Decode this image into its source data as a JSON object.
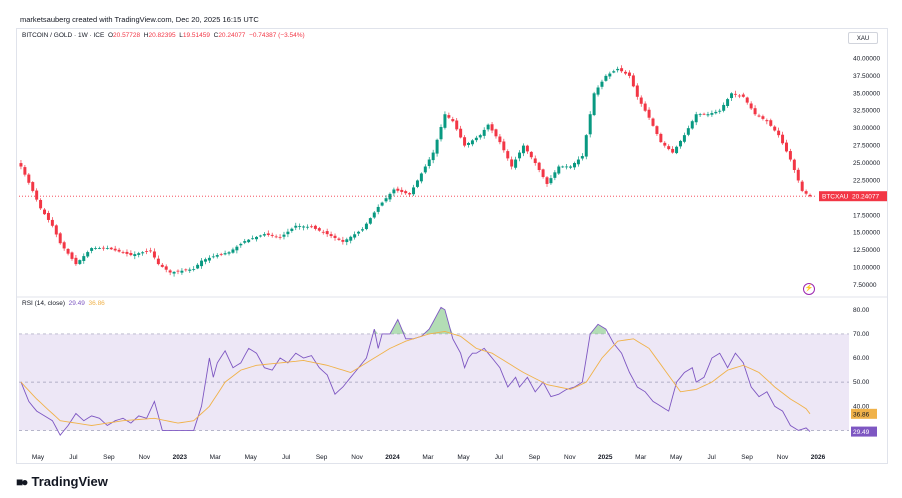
{
  "header": {
    "credit": "marketsauberg created with TradingView.com, Dec 20, 2025 16:15 UTC"
  },
  "legend": {
    "symbol": "BITCOIN / GOLD · 1W · ICE",
    "o_label": "O",
    "o": "20.57728",
    "h_label": "H",
    "h": "20.82395",
    "l_label": "L",
    "l": "19.51459",
    "c_label": "C",
    "c": "20.24077",
    "change": "−0.74387 (−3.54%)"
  },
  "scale_button": "XAU",
  "price_badge": {
    "symbol": "BTCXAU",
    "value": "20.24077"
  },
  "rsi_legend": {
    "label": "RSI (14, close)",
    "rsi": "29.49",
    "ma": "36.86"
  },
  "rsi_badges": {
    "ma": "36.86",
    "rsi": "29.49"
  },
  "brand": "TradingView",
  "colors": {
    "up": "#089981",
    "down": "#f23645",
    "rsi": "#7e57c2",
    "rsi_ma": "#f0b24a",
    "band": "#ede7f6"
  },
  "chart_data": [
    {
      "type": "candlestick",
      "title": "BITCOIN / GOLD · 1W · ICE",
      "yticks": [
        "40.00000",
        "37.50000",
        "35.00000",
        "32.50000",
        "30.00000",
        "27.50000",
        "25.00000",
        "22.50000",
        "20.00000",
        "17.50000",
        "15.00000",
        "12.50000",
        "10.00000",
        "7.50000"
      ],
      "ylim": [
        6.5,
        41.5
      ],
      "xticks": [
        "May",
        "Jul",
        "Sep",
        "Nov",
        "2023",
        "Mar",
        "May",
        "Jul",
        "Sep",
        "Nov",
        "2024",
        "Mar",
        "May",
        "Jul",
        "Sep",
        "Nov",
        "2025",
        "Mar",
        "May",
        "Jul",
        "Sep",
        "Nov",
        "2026"
      ],
      "last_value": 20.24077,
      "close_anchors": [
        [
          0,
          24.5
        ],
        [
          3,
          21
        ],
        [
          5,
          18.5
        ],
        [
          8,
          16
        ],
        [
          10,
          13.5
        ],
        [
          14,
          10.5
        ],
        [
          18,
          12.8
        ],
        [
          22,
          12.8
        ],
        [
          28,
          11.8
        ],
        [
          31,
          12.2
        ],
        [
          33,
          12.4
        ],
        [
          35,
          10.5
        ],
        [
          38,
          9.3
        ],
        [
          44,
          9.8
        ],
        [
          46,
          11
        ],
        [
          50,
          11.8
        ],
        [
          53,
          12.2
        ],
        [
          57,
          13.8
        ],
        [
          62,
          14.8
        ],
        [
          66,
          14.3
        ],
        [
          70,
          16
        ],
        [
          74,
          15.8
        ],
        [
          78,
          14.8
        ],
        [
          82,
          13.7
        ],
        [
          87,
          15.5
        ],
        [
          91,
          18.7
        ],
        [
          95,
          21.2
        ],
        [
          99,
          20.5
        ],
        [
          102,
          23.5
        ],
        [
          105,
          26.5
        ],
        [
          108,
          32
        ],
        [
          110,
          31
        ],
        [
          113,
          27.5
        ],
        [
          117,
          29
        ],
        [
          119,
          30.5
        ],
        [
          122,
          28
        ],
        [
          125,
          24.5
        ],
        [
          128,
          27.5
        ],
        [
          131,
          25
        ],
        [
          134,
          22
        ],
        [
          137,
          24.5
        ],
        [
          140,
          24.5
        ],
        [
          143,
          26
        ],
        [
          146,
          35
        ],
        [
          149,
          37.5
        ],
        [
          152,
          38.5
        ],
        [
          155,
          37.5
        ],
        [
          157,
          34.5
        ],
        [
          160,
          31.5
        ],
        [
          163,
          28
        ],
        [
          166,
          26.5
        ],
        [
          169,
          29
        ],
        [
          172,
          32
        ],
        [
          175,
          32
        ],
        [
          178,
          32.5
        ],
        [
          181,
          35
        ],
        [
          184,
          34.5
        ],
        [
          187,
          32
        ],
        [
          190,
          31
        ],
        [
          193,
          29
        ],
        [
          196,
          25.5
        ],
        [
          199,
          21
        ],
        [
          200,
          20.6
        ],
        [
          201,
          20.24
        ]
      ],
      "n_candles": 202
    },
    {
      "type": "line",
      "title": "RSI (14, close)",
      "yticks": [
        "80.00",
        "70.00",
        "60.00",
        "50.00",
        "40.00"
      ],
      "ylim": [
        26,
        82
      ],
      "band": [
        30,
        70
      ],
      "midline": 50,
      "series": [
        {
          "name": "RSI",
          "anchors": [
            [
              0,
              50
            ],
            [
              2,
              42
            ],
            [
              4,
              38
            ],
            [
              6,
              36
            ],
            [
              8,
              34
            ],
            [
              10,
              28
            ],
            [
              12,
              32
            ],
            [
              14,
              37
            ],
            [
              16,
              34
            ],
            [
              18,
              36
            ],
            [
              20,
              35
            ],
            [
              22,
              32
            ],
            [
              24,
              34
            ],
            [
              26,
              35
            ],
            [
              28,
              33
            ],
            [
              30,
              36
            ],
            [
              32,
              35
            ],
            [
              34,
              42
            ],
            [
              36,
              30
            ],
            [
              38,
              30
            ],
            [
              42,
              30
            ],
            [
              44,
              30
            ],
            [
              46,
              40
            ],
            [
              48,
              60
            ],
            [
              49,
              52
            ],
            [
              50,
              58
            ],
            [
              52,
              63
            ],
            [
              54,
              56
            ],
            [
              56,
              58
            ],
            [
              58,
              64
            ],
            [
              60,
              62
            ],
            [
              62,
              56
            ],
            [
              64,
              55
            ],
            [
              66,
              60
            ],
            [
              68,
              58
            ],
            [
              70,
              62
            ],
            [
              72,
              60
            ],
            [
              74,
              61
            ],
            [
              76,
              56
            ],
            [
              78,
              53
            ],
            [
              80,
              45
            ],
            [
              82,
              48
            ],
            [
              84,
              52
            ],
            [
              86,
              56
            ],
            [
              88,
              60
            ],
            [
              90,
              72
            ],
            [
              91,
              64
            ],
            [
              92,
              70
            ],
            [
              94,
              70
            ],
            [
              96,
              76
            ],
            [
              98,
              68
            ],
            [
              100,
              68
            ],
            [
              102,
              69
            ],
            [
              104,
              72
            ],
            [
              106,
              78
            ],
            [
              107,
              81
            ],
            [
              108,
              80
            ],
            [
              110,
              68
            ],
            [
              112,
              62
            ],
            [
              113,
              56
            ],
            [
              114,
              60
            ],
            [
              115,
              62
            ],
            [
              116,
              62
            ],
            [
              118,
              64
            ],
            [
              120,
              60
            ],
            [
              122,
              56
            ],
            [
              124,
              48
            ],
            [
              126,
              52
            ],
            [
              127,
              48
            ],
            [
              128,
              50
            ],
            [
              129,
              52
            ],
            [
              131,
              46
            ],
            [
              133,
              50
            ],
            [
              135,
              44
            ],
            [
              137,
              45
            ],
            [
              139,
              47
            ],
            [
              141,
              48
            ],
            [
              143,
              50
            ],
            [
              145,
              70
            ],
            [
              147,
              74
            ],
            [
              149,
              72
            ],
            [
              151,
              66
            ],
            [
              153,
              62
            ],
            [
              155,
              54
            ],
            [
              157,
              48
            ],
            [
              159,
              46
            ],
            [
              161,
              42
            ],
            [
              163,
              40
            ],
            [
              165,
              38
            ],
            [
              167,
              50
            ],
            [
              169,
              54
            ],
            [
              171,
              56
            ],
            [
              172,
              50
            ],
            [
              174,
              52
            ],
            [
              176,
              60
            ],
            [
              178,
              62
            ],
            [
              180,
              56
            ],
            [
              182,
              62
            ],
            [
              184,
              58
            ],
            [
              186,
              48
            ],
            [
              188,
              44
            ],
            [
              190,
              46
            ],
            [
              192,
              40
            ],
            [
              194,
              38
            ],
            [
              196,
              32
            ],
            [
              198,
              30
            ],
            [
              200,
              31
            ],
            [
              201,
              29.49
            ]
          ]
        },
        {
          "name": "RSI-based MA",
          "anchors": [
            [
              0,
              50
            ],
            [
              4,
              43
            ],
            [
              10,
              34
            ],
            [
              18,
              32
            ],
            [
              26,
              34
            ],
            [
              34,
              35
            ],
            [
              40,
              33
            ],
            [
              44,
              34
            ],
            [
              48,
              40
            ],
            [
              52,
              50
            ],
            [
              56,
              55
            ],
            [
              60,
              57
            ],
            [
              66,
              58
            ],
            [
              72,
              59
            ],
            [
              78,
              57
            ],
            [
              84,
              54
            ],
            [
              90,
              60
            ],
            [
              94,
              64
            ],
            [
              98,
              67
            ],
            [
              104,
              70
            ],
            [
              108,
              71
            ],
            [
              112,
              69
            ],
            [
              116,
              64
            ],
            [
              120,
              62
            ],
            [
              124,
              58
            ],
            [
              128,
              54
            ],
            [
              134,
              49
            ],
            [
              140,
              47
            ],
            [
              144,
              50
            ],
            [
              148,
              60
            ],
            [
              152,
              67
            ],
            [
              156,
              68
            ],
            [
              160,
              64
            ],
            [
              164,
              55
            ],
            [
              168,
              46
            ],
            [
              172,
              47
            ],
            [
              176,
              50
            ],
            [
              180,
              55
            ],
            [
              184,
              57
            ],
            [
              188,
              54
            ],
            [
              192,
              48
            ],
            [
              196,
              43
            ],
            [
              200,
              39
            ],
            [
              201,
              36.86
            ]
          ]
        }
      ]
    }
  ]
}
